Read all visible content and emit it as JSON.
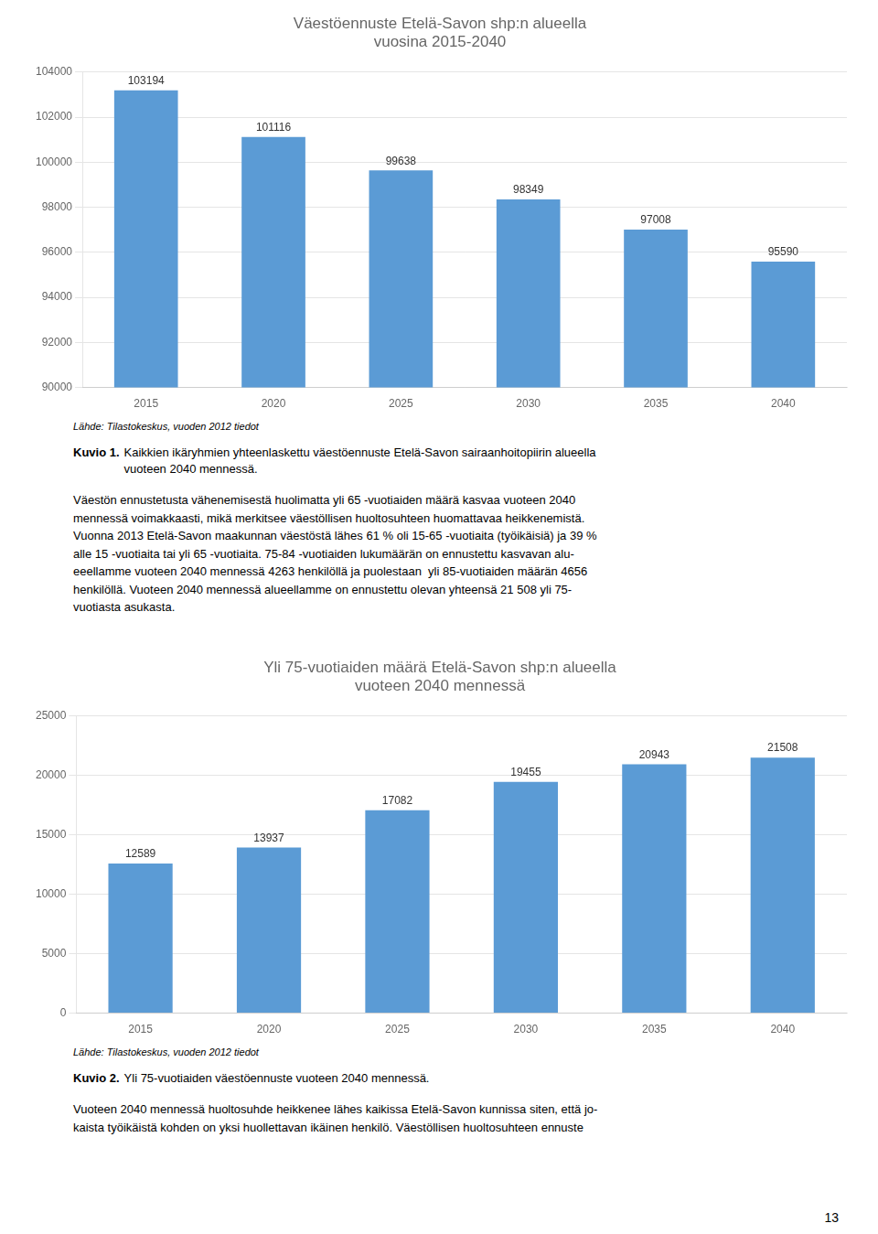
{
  "chart_data": [
    {
      "type": "bar",
      "title": "Väestöennuste Etelä-Savon shp:n alueella\nvuosina 2015-2040",
      "categories": [
        "2015",
        "2020",
        "2025",
        "2030",
        "2035",
        "2040"
      ],
      "values": [
        103194,
        101116,
        99638,
        98349,
        97008,
        95590
      ],
      "color": "#5b9bd5",
      "ylim": [
        90000,
        104000
      ],
      "yticks": [
        90000,
        92000,
        94000,
        96000,
        98000,
        100000,
        102000,
        104000
      ],
      "grid": true,
      "data_labels": true,
      "source": "Lähde: Tilastokeskus, vuoden 2012 tiedot",
      "caption_label": "Kuvio 1.",
      "caption": "Kaikkien ikäryhmien yhteenlaskettu väestöennuste Etelä-Savon sairaanhoitopiirin alueella\nvuoteen 2040 mennessä.",
      "body": "Väestön ennustetusta vähenemisestä huolimatta yli 65 -vuotiaiden määrä kasvaa vuoteen 2040\nmennessä voimakkaasti, mikä merkitsee väestöllisen huoltosuhteen huomattavaa heikkenemistä.\nVuonna 2013 Etelä-Savon maakunnan väestöstä lähes 61 % oli 15-65 -vuotiaita (työikäisiä) ja 39 %\nalle 15 -vuotiaita tai yli 65 -vuotiaita. 75-84 -vuotiaiden lukumäärän on ennustettu kasvavan alu-\neeellamme vuoteen 2040 mennessä 4263 henkilöllä ja puolestaan  yli 85-vuotiaiden määrän 4656\nhenkilöllä. Vuoteen 2040 mennessä alueellamme on ennustettu olevan yhteensä 21 508 yli 75-\nvuotiasta asukasta."
    },
    {
      "type": "bar",
      "title": "Yli 75-vuotiaiden määrä Etelä-Savon shp:n alueella\nvuoteen 2040 mennessä",
      "categories": [
        "2015",
        "2020",
        "2025",
        "2030",
        "2035",
        "2040"
      ],
      "values": [
        12589,
        13937,
        17082,
        19455,
        20943,
        21508
      ],
      "color": "#5b9bd5",
      "ylim": [
        0,
        25000
      ],
      "yticks": [
        0,
        5000,
        10000,
        15000,
        20000,
        25000
      ],
      "grid": true,
      "data_labels": true,
      "source": "Lähde: Tilastokeskus, vuoden 2012 tiedot",
      "caption_label": "Kuvio 2.",
      "caption": "Yli 75-vuotiaiden väestöennuste vuoteen 2040 mennessä.",
      "body": "Vuoteen 2040 mennessä huoltosuhde heikkenee lähes kaikissa Etelä-Savon kunnissa siten, että jo-\nkaista työikäistä kohden on yksi huollettavan ikäinen henkilö. Väestöllisen huoltosuhteen ennuste"
    }
  ],
  "page_number": "13"
}
